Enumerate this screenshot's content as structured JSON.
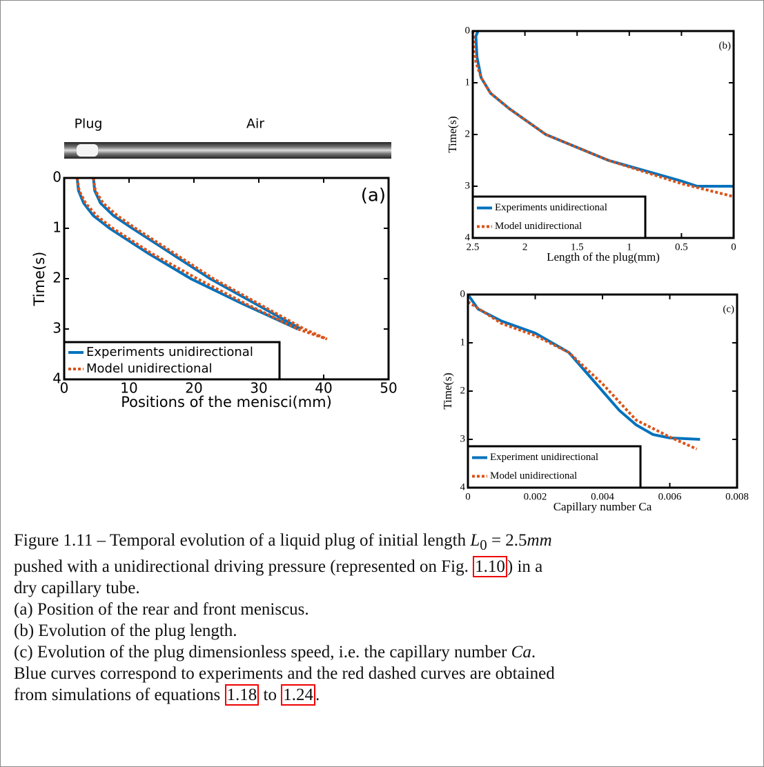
{
  "tube_image": {
    "labels": [
      "Plug",
      "Air"
    ]
  },
  "chart_data": [
    {
      "type": "line",
      "annotation": "(a)",
      "xlabel": "Positions of the menisci(mm)",
      "ylabel": "Time(s)",
      "xlim": [
        0,
        50
      ],
      "xticks": [
        0,
        10,
        20,
        30,
        40,
        50
      ],
      "ylim": [
        4,
        0
      ],
      "yticks": [
        0,
        1,
        2,
        3,
        4
      ],
      "legend": "lower left",
      "series": [
        {
          "name": "Experiments unidirectional",
          "color": "#0072bd",
          "dash": false,
          "x": [
            2,
            2.2,
            3,
            4.5,
            7,
            13,
            19.5,
            27.5,
            36
          ],
          "y": [
            0,
            0.25,
            0.5,
            0.75,
            1,
            1.5,
            2,
            2.5,
            3
          ]
        },
        {
          "color": "#0072bd",
          "dash": false,
          "x": [
            4.5,
            4.7,
            5.6,
            7.6,
            10.5,
            16.5,
            22.5,
            29.5,
            36.5
          ],
          "y": [
            0,
            0.25,
            0.5,
            0.75,
            1,
            1.5,
            2,
            2.5,
            3
          ]
        },
        {
          "name": "Model unidirectional",
          "color": "#d95319",
          "dash": true,
          "x": [
            2,
            2.3,
            3.3,
            5,
            7.5,
            13.5,
            20.5,
            28,
            36,
            40.5
          ],
          "y": [
            0,
            0.25,
            0.5,
            0.75,
            1,
            1.5,
            2,
            2.5,
            3,
            3.2
          ]
        },
        {
          "color": "#d95319",
          "dash": true,
          "x": [
            4.5,
            4.8,
            6,
            8.2,
            11,
            17,
            23,
            30,
            37,
            40.5
          ],
          "y": [
            0,
            0.25,
            0.5,
            0.75,
            1,
            1.5,
            2,
            2.5,
            3,
            3.2
          ]
        }
      ]
    },
    {
      "type": "line",
      "annotation": "(b)",
      "xlabel": "Length of the plug(mm)",
      "ylabel": "Time(s)",
      "xlim": [
        2.5,
        0
      ],
      "xticks": [
        2.5,
        2,
        1.5,
        1,
        0.5,
        0
      ],
      "ylim": [
        4,
        0
      ],
      "yticks": [
        0,
        1,
        2,
        3,
        4
      ],
      "legend": "lower left",
      "series": [
        {
          "name": "Experiments unidirectional",
          "color": "#0072bd",
          "dash": false,
          "x": [
            2.45,
            2.47,
            2.46,
            2.42,
            2.33,
            2.15,
            1.8,
            1.2,
            0.5,
            0.35,
            0
          ],
          "y": [
            0,
            0.1,
            0.5,
            0.9,
            1.2,
            1.5,
            2,
            2.5,
            2.9,
            3,
            3
          ]
        },
        {
          "name": "Model unidirectional",
          "color": "#d95319",
          "dash": true,
          "x": [
            2.5,
            2.47,
            2.42,
            2.33,
            2.15,
            1.8,
            1.2,
            0.5,
            0
          ],
          "y": [
            0,
            0.6,
            0.9,
            1.2,
            1.5,
            2,
            2.5,
            2.95,
            3.2
          ]
        }
      ]
    },
    {
      "type": "line",
      "annotation": "(c)",
      "xlabel": "Capillary number Ca",
      "ylabel": "Time(s)",
      "xlim": [
        0,
        0.008
      ],
      "xticks": [
        0,
        0.002,
        0.004,
        0.006,
        0.008
      ],
      "ylim": [
        4,
        0
      ],
      "yticks": [
        0,
        1,
        2,
        3,
        4
      ],
      "legend": "lower left",
      "series": [
        {
          "name": "Experiment unidirectional",
          "color": "#0072bd",
          "dash": false,
          "x": [
            0,
            0.0003,
            0.001,
            0.002,
            0.003,
            0.0035,
            0.004,
            0.0045,
            0.005,
            0.0055,
            0.006,
            0.0069
          ],
          "y": [
            0,
            0.3,
            0.55,
            0.8,
            1.2,
            1.6,
            2,
            2.4,
            2.7,
            2.9,
            2.97,
            3
          ]
        },
        {
          "name": "Model unidirectional",
          "color": "#d95319",
          "dash": true,
          "x": [
            0,
            0.001,
            0.002,
            0.003,
            0.004,
            0.005,
            0.006,
            0.0068
          ],
          "y": [
            0.15,
            0.6,
            0.85,
            1.2,
            1.85,
            2.6,
            2.95,
            3.2
          ]
        }
      ]
    }
  ],
  "caption": [
    [
      {
        "text": "Figure 1.11 – Temporal evolution of a liquid plug of initial length "
      },
      {
        "italic": "L"
      },
      {
        "sub": "0"
      },
      {
        "text": " = 2.5"
      },
      {
        "italic": "mm"
      }
    ],
    [
      {
        "text": "pushed with a unidirectional driving pressure (represented on Fig. "
      },
      {
        "ref": "1.10"
      },
      {
        "text": ") in a"
      }
    ],
    [
      {
        "text": "dry capillary tube."
      }
    ],
    [
      {
        "text": "(a) Position of the rear and front meniscus."
      }
    ],
    [
      {
        "text": "(b) Evolution of the plug length."
      }
    ],
    [
      {
        "text": "(c) Evolution of the plug dimensionless speed, i.e. the capillary number "
      },
      {
        "italic": "Ca"
      },
      {
        "text": "."
      }
    ],
    [
      {
        "text": "Blue curves correspond to experiments and the red dashed curves are obtained"
      }
    ],
    [
      {
        "text": "from simulations of equations "
      },
      {
        "ref": "1.18"
      },
      {
        "text": " to "
      },
      {
        "ref": "1.24"
      },
      {
        "text": "."
      }
    ]
  ]
}
